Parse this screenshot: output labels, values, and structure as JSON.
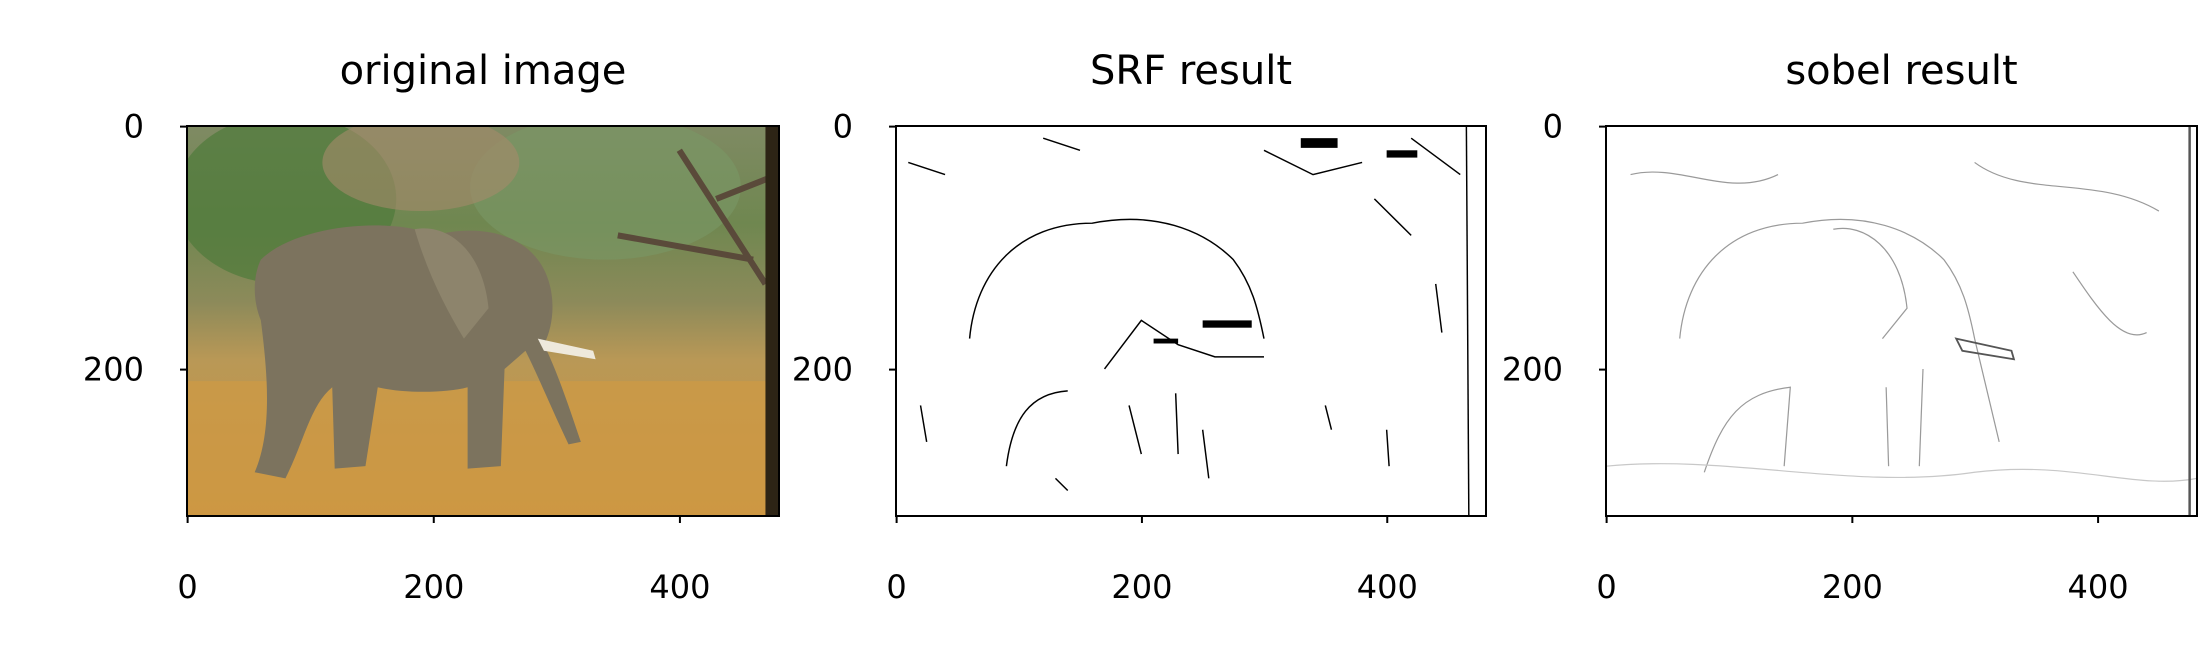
{
  "chart_data": [
    {
      "type": "image",
      "title": "original image",
      "xlim": [
        -0.5,
        480.5
      ],
      "ylim": [
        320.5,
        -0.5
      ],
      "xticks": [
        0,
        200,
        400
      ],
      "yticks": [
        0,
        200
      ]
    },
    {
      "type": "image",
      "title": "SRF result",
      "xlim": [
        -0.5,
        480.5
      ],
      "ylim": [
        320.5,
        -0.5
      ],
      "xticks": [
        0,
        200,
        400
      ],
      "yticks": [
        0,
        200
      ]
    },
    {
      "type": "image",
      "title": "sobel result",
      "xlim": [
        -0.5,
        480.5
      ],
      "ylim": [
        320.5,
        -0.5
      ],
      "xticks": [
        0,
        200,
        400
      ],
      "yticks": [
        0,
        200
      ]
    }
  ]
}
